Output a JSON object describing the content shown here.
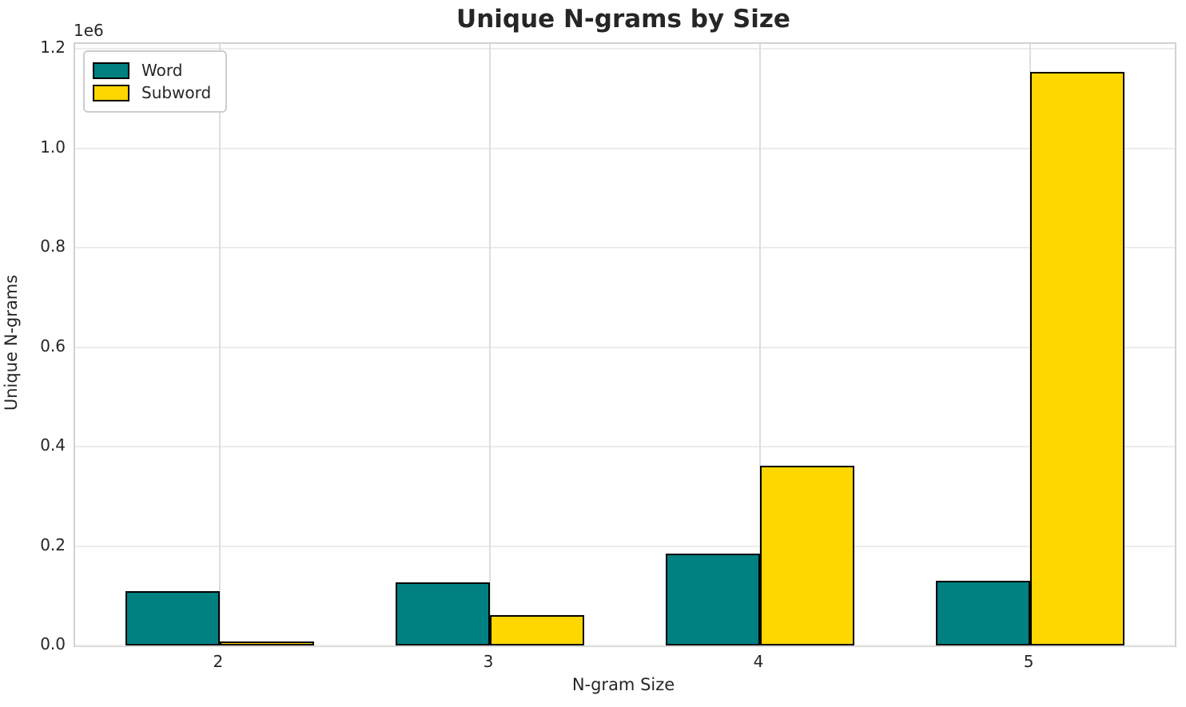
{
  "chart_data": {
    "type": "bar",
    "title": "Unique N-grams by Size",
    "xlabel": "N-gram Size",
    "ylabel": "Unique N-grams",
    "y_offset_label": "1e6",
    "categories": [
      "2",
      "3",
      "4",
      "5"
    ],
    "series": [
      {
        "name": "Word",
        "color": "#008080",
        "values": [
          109000,
          127000,
          185000,
          130000
        ]
      },
      {
        "name": "Subword",
        "color": "#FFD700",
        "values": [
          8000,
          61000,
          362000,
          1153000
        ]
      }
    ],
    "bar_edge_color": "#000000",
    "bar_width_units": 0.35,
    "yticks": [
      0,
      200000,
      400000,
      600000,
      800000,
      1000000,
      1200000
    ],
    "ytick_labels": [
      "0.0",
      "0.2",
      "0.4",
      "0.6",
      "0.8",
      "1.0",
      "1.2"
    ],
    "ylim": [
      0,
      1210000
    ],
    "xlim": [
      -0.535,
      3.535
    ],
    "grid": true,
    "legend_position": "upper left"
  }
}
